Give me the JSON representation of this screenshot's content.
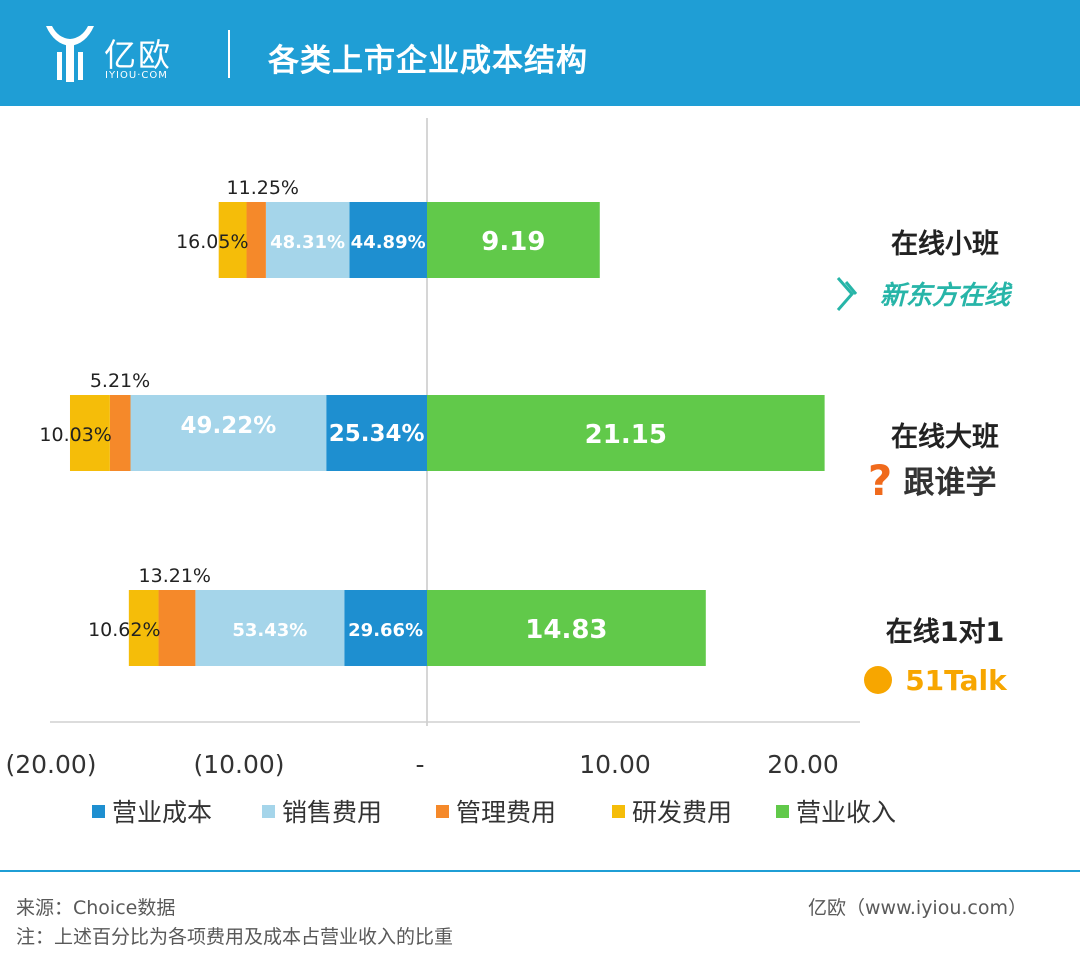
{
  "header": {
    "logo_text": "亿欧",
    "logo_sub": "IYIOU·COM",
    "title": "各类上市企业成本结构"
  },
  "chart_data": {
    "type": "bar",
    "orientation": "horizontal",
    "stacked": true,
    "title": "各类上市企业成本结构",
    "xlim": [
      -20,
      21.5
    ],
    "xticks": [
      {
        "value": -20,
        "label": "(20.00)"
      },
      {
        "value": -10,
        "label": "(10.00)"
      },
      {
        "value": 0,
        "label": "-"
      },
      {
        "value": 10,
        "label": "10.00"
      },
      {
        "value": 20,
        "label": "20.00"
      }
    ],
    "categories": [
      {
        "name": "在线小班",
        "brand": "新东方在线",
        "brand_color": "#27b5a8"
      },
      {
        "name": "在线大班",
        "brand": "跟谁学",
        "brand_color": "#333333"
      },
      {
        "name": "在线1对1",
        "brand": "51Talk",
        "brand_color": "#f7a600"
      }
    ],
    "colors": {
      "营业成本": "#1e8fd0",
      "销售费用": "#a5d5ea",
      "管理费用": "#f5892a",
      "研发费用": "#f5bd09",
      "营业收入": "#61c94a"
    },
    "legend": [
      "营业成本",
      "销售费用",
      "管理费用",
      "研发费用",
      "营业收入"
    ],
    "series": [
      {
        "name": "营业收入",
        "values": [
          9.19,
          21.15,
          14.83
        ],
        "labels": [
          "9.19",
          "21.15",
          "14.83"
        ]
      },
      {
        "name": "营业成本",
        "values": [
          -4.13,
          -5.36,
          -4.4
        ],
        "labels": [
          "44.89%",
          "25.34%",
          "29.66%"
        ]
      },
      {
        "name": "销售费用",
        "values": [
          -4.44,
          -10.41,
          -7.92
        ],
        "labels": [
          "48.31%",
          "49.22%",
          "53.43%"
        ]
      },
      {
        "name": "管理费用",
        "values": [
          -1.03,
          -1.1,
          -1.96
        ],
        "labels": [
          "11.25%",
          "5.21%",
          "13.21%"
        ]
      },
      {
        "name": "研发费用",
        "values": [
          -1.48,
          -2.12,
          -1.58
        ],
        "labels": [
          "16.05%",
          "10.03%",
          "10.62%"
        ]
      }
    ]
  },
  "footer": {
    "source": "来源：Choice数据",
    "note": "注：上述百分比为各项费用及成本占营业收入的比重",
    "credit": "亿欧（www.iyiou.com）"
  }
}
